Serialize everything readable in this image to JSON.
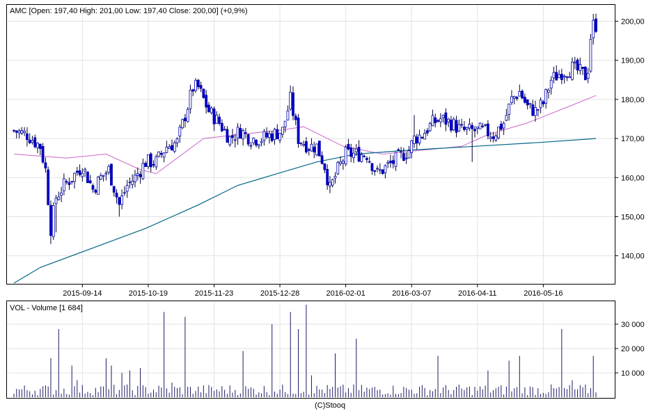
{
  "chart_data": [
    {
      "type": "candlestick",
      "title": "AMC [Open: 197,40  High: 201,00  Low: 197,40  Close: 200,00] (+0,9%)",
      "ylim": [
        133,
        204
      ],
      "y_ticks": [
        200,
        190,
        180,
        170,
        160,
        150,
        140
      ],
      "y_tick_labels": [
        "200,00",
        "190,00",
        "180,00",
        "170,00",
        "160,00",
        "150,00",
        "140,00"
      ],
      "x_tick_labels": [
        "2015-09-14",
        "2015-10-19",
        "2015-11-23",
        "2015-12-28",
        "2016-02-01",
        "2016-03-07",
        "2016-04-11",
        "2016-05-16"
      ],
      "x_tick_index": [
        26,
        51,
        76,
        101,
        126,
        151,
        176,
        201
      ],
      "bar_count": 222,
      "price_anchors": [
        [
          0,
          172
        ],
        [
          5,
          171
        ],
        [
          10,
          168
        ],
        [
          12,
          162
        ],
        [
          14,
          147
        ],
        [
          16,
          155
        ],
        [
          19,
          158
        ],
        [
          22,
          160
        ],
        [
          26,
          163
        ],
        [
          30,
          157
        ],
        [
          33,
          160
        ],
        [
          36,
          162
        ],
        [
          40,
          153
        ],
        [
          43,
          158
        ],
        [
          46,
          160
        ],
        [
          50,
          164
        ],
        [
          54,
          164
        ],
        [
          58,
          168
        ],
        [
          62,
          169
        ],
        [
          65,
          176
        ],
        [
          68,
          183
        ],
        [
          70,
          183
        ],
        [
          74,
          177
        ],
        [
          78,
          174
        ],
        [
          82,
          170
        ],
        [
          86,
          172
        ],
        [
          90,
          170
        ],
        [
          94,
          170
        ],
        [
          98,
          171
        ],
        [
          102,
          172
        ],
        [
          105,
          180
        ],
        [
          108,
          170
        ],
        [
          112,
          168
        ],
        [
          115,
          168
        ],
        [
          118,
          163
        ],
        [
          120,
          157
        ],
        [
          123,
          162
        ],
        [
          126,
          166
        ],
        [
          130,
          166
        ],
        [
          134,
          166
        ],
        [
          138,
          161
        ],
        [
          142,
          163
        ],
        [
          146,
          165
        ],
        [
          150,
          167
        ],
        [
          152,
          170
        ],
        [
          155,
          171
        ],
        [
          159,
          174
        ],
        [
          162,
          175
        ],
        [
          166,
          174
        ],
        [
          170,
          172
        ],
        [
          174,
          172
        ],
        [
          178,
          172
        ],
        [
          182,
          171
        ],
        [
          186,
          174
        ],
        [
          189,
          180
        ],
        [
          192,
          182
        ],
        [
          195,
          178
        ],
        [
          198,
          177
        ],
        [
          201,
          179
        ],
        [
          204,
          185
        ],
        [
          208,
          187
        ],
        [
          212,
          188
        ],
        [
          215,
          187
        ],
        [
          217,
          186
        ],
        [
          218,
          188
        ],
        [
          219,
          196
        ],
        [
          220,
          199
        ],
        [
          221,
          199
        ]
      ],
      "wick_spikes": [
        [
          14,
          143
        ],
        [
          16,
          146
        ],
        [
          40,
          150
        ],
        [
          105,
          181
        ],
        [
          120,
          156
        ],
        [
          152,
          176
        ],
        [
          174,
          164
        ],
        [
          221,
          201
        ]
      ],
      "ma_short": [
        [
          0,
          166
        ],
        [
          20,
          165
        ],
        [
          35,
          166
        ],
        [
          48,
          162
        ],
        [
          54,
          161
        ],
        [
          62,
          165
        ],
        [
          72,
          170
        ],
        [
          85,
          171
        ],
        [
          100,
          172
        ],
        [
          110,
          173
        ],
        [
          125,
          168
        ],
        [
          140,
          166
        ],
        [
          155,
          167
        ],
        [
          170,
          168
        ],
        [
          180,
          171
        ],
        [
          195,
          174
        ],
        [
          210,
          178
        ],
        [
          221,
          181
        ]
      ],
      "ma_long": [
        [
          0,
          133
        ],
        [
          10,
          137
        ],
        [
          30,
          142
        ],
        [
          50,
          147
        ],
        [
          70,
          153
        ],
        [
          85,
          158
        ],
        [
          100,
          161
        ],
        [
          115,
          164
        ],
        [
          130,
          166
        ],
        [
          150,
          167
        ],
        [
          175,
          168
        ],
        [
          200,
          169
        ],
        [
          221,
          170
        ]
      ]
    },
    {
      "type": "bar",
      "title": "VOL - Volume [1 684]",
      "ylim": [
        0,
        38000
      ],
      "y_ticks": [
        10000,
        20000,
        30000
      ],
      "y_tick_labels": [
        "10 000",
        "20 000",
        "30 000"
      ],
      "spikes": [
        [
          14,
          16000
        ],
        [
          17,
          28000
        ],
        [
          22,
          13000
        ],
        [
          24,
          7000
        ],
        [
          35,
          16000
        ],
        [
          37,
          13000
        ],
        [
          41,
          10000
        ],
        [
          44,
          11000
        ],
        [
          48,
          12000
        ],
        [
          57,
          35000
        ],
        [
          60,
          6000
        ],
        [
          65,
          33000
        ],
        [
          87,
          19000
        ],
        [
          98,
          30000
        ],
        [
          105,
          35000
        ],
        [
          108,
          28000
        ],
        [
          111,
          38000
        ],
        [
          113,
          9000
        ],
        [
          122,
          18000
        ],
        [
          130,
          24000
        ],
        [
          161,
          17000
        ],
        [
          180,
          11000
        ],
        [
          188,
          15000
        ],
        [
          192,
          17000
        ],
        [
          208,
          28000
        ],
        [
          212,
          7000
        ],
        [
          220,
          17000
        ]
      ]
    }
  ],
  "footer": {
    "source": "(C)Stooq"
  }
}
